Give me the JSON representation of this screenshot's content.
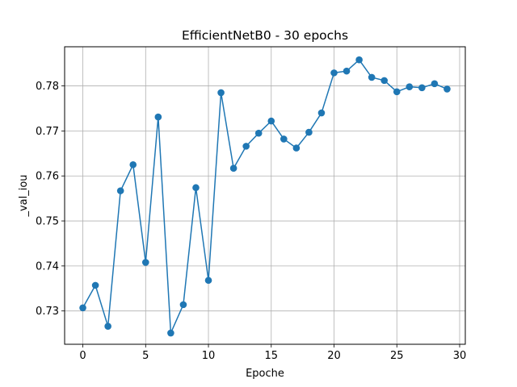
{
  "chart_data": {
    "type": "line",
    "title": "EfficientNetB0 - 30 epochs",
    "xlabel": "Epoche",
    "ylabel": "_val_iou",
    "xlim": [
      -1.45,
      30.45
    ],
    "ylim": [
      0.7226,
      0.7887
    ],
    "xticks": [
      0,
      5,
      10,
      15,
      20,
      25,
      30
    ],
    "yticks": [
      0.73,
      0.74,
      0.75,
      0.76,
      0.77,
      0.78
    ],
    "xtick_labels": [
      "0",
      "5",
      "10",
      "15",
      "20",
      "25",
      "30"
    ],
    "ytick_labels": [
      "0.73",
      "0.74",
      "0.75",
      "0.76",
      "0.77",
      "0.78"
    ],
    "grid": true,
    "marker": "circle",
    "color": "#1f77b4",
    "series": [
      {
        "x": [
          0,
          1,
          2,
          3,
          4,
          5,
          6,
          7,
          8,
          9,
          10,
          11,
          12,
          13,
          14,
          15,
          16,
          17,
          18,
          19,
          20,
          21,
          22,
          23,
          24,
          25,
          26,
          27,
          28,
          29
        ],
        "values": [
          0.7307,
          0.7357,
          0.7266,
          0.7567,
          0.7625,
          0.7408,
          0.7731,
          0.7251,
          0.7314,
          0.7574,
          0.7368,
          0.7785,
          0.7617,
          0.7666,
          0.7695,
          0.7722,
          0.7682,
          0.7662,
          0.7697,
          0.774,
          0.7829,
          0.7833,
          0.7858,
          0.7819,
          0.7812,
          0.7787,
          0.7798,
          0.7796,
          0.7805,
          0.7793
        ]
      }
    ]
  }
}
